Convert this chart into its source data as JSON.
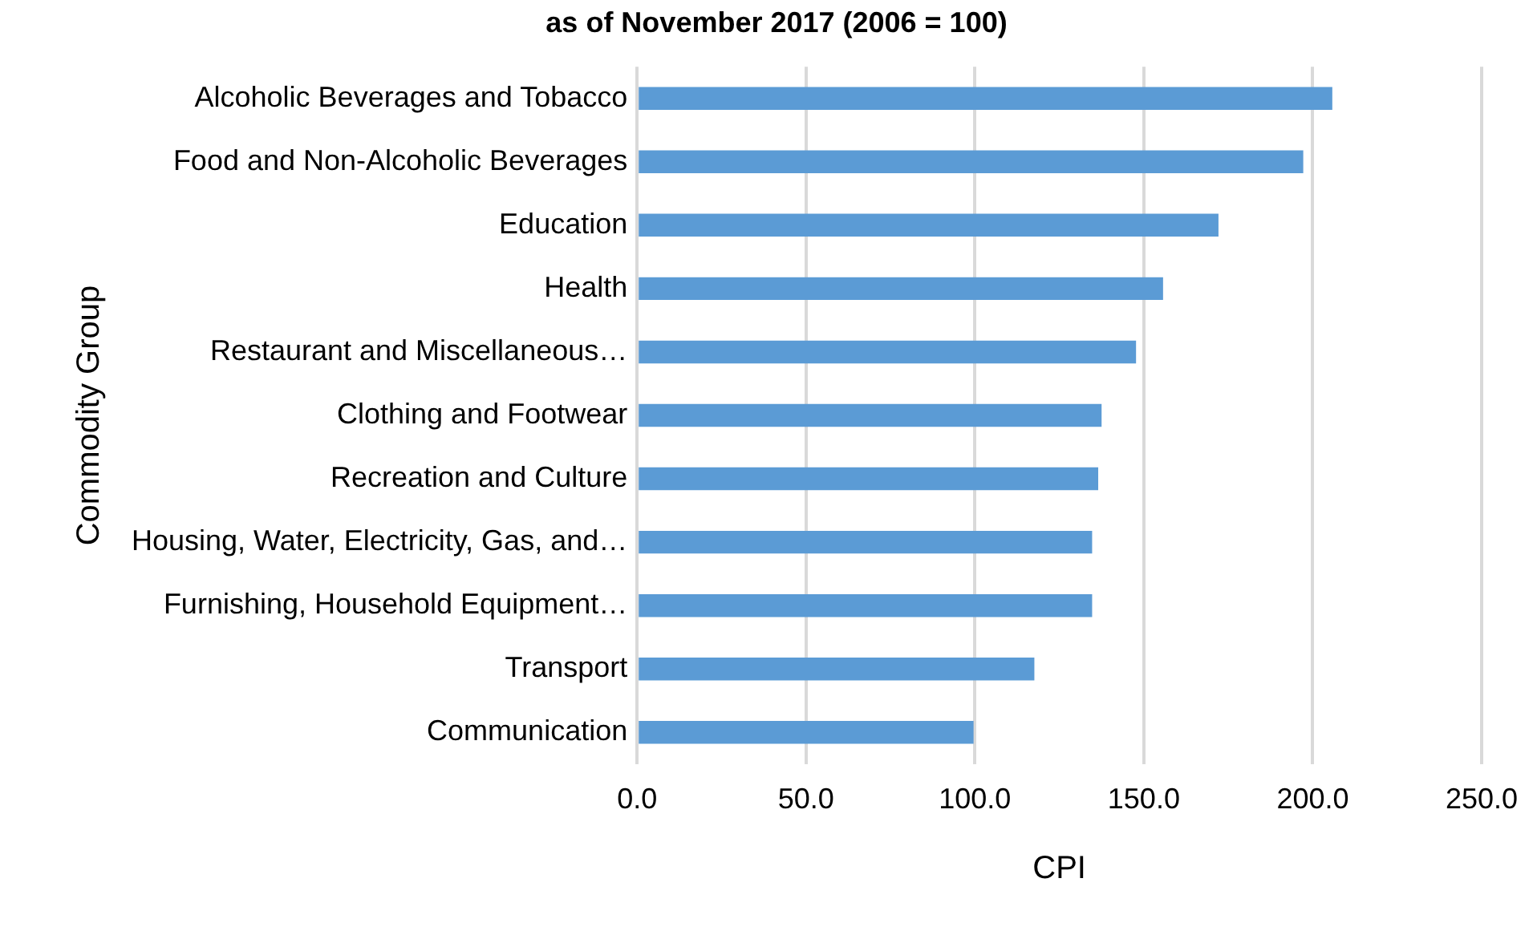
{
  "chart_data": {
    "type": "bar",
    "orientation": "horizontal",
    "title": "as of November 2017 (2006 = 100)",
    "xlabel": "CPI",
    "ylabel": "Commodity Group",
    "categories": [
      "Alcoholic Beverages and Tobacco",
      "Food and Non-Alcoholic Beverages",
      "Education",
      "Health",
      "Restaurant and Miscellaneous…",
      "Clothing and Footwear",
      "Recreation and Culture",
      "Housing, Water, Electricity, Gas, and…",
      "Furnishing, Household Equipment…",
      "Transport",
      "Communication"
    ],
    "values": [
      205.8,
      197.2,
      172.1,
      155.7,
      147.7,
      137.5,
      136.5,
      134.7,
      134.7,
      117.6,
      99.6
    ],
    "color": "#5b9bd5",
    "xlim": [
      0,
      250
    ],
    "xticks": [
      {
        "value": 0,
        "label": "0.0"
      },
      {
        "value": 50,
        "label": "50.0"
      },
      {
        "value": 100,
        "label": "100.0"
      },
      {
        "value": 150,
        "label": "150.0"
      },
      {
        "value": 200,
        "label": "200.0"
      },
      {
        "value": 250,
        "label": "250.0"
      }
    ],
    "grid": "x",
    "legend": false
  }
}
